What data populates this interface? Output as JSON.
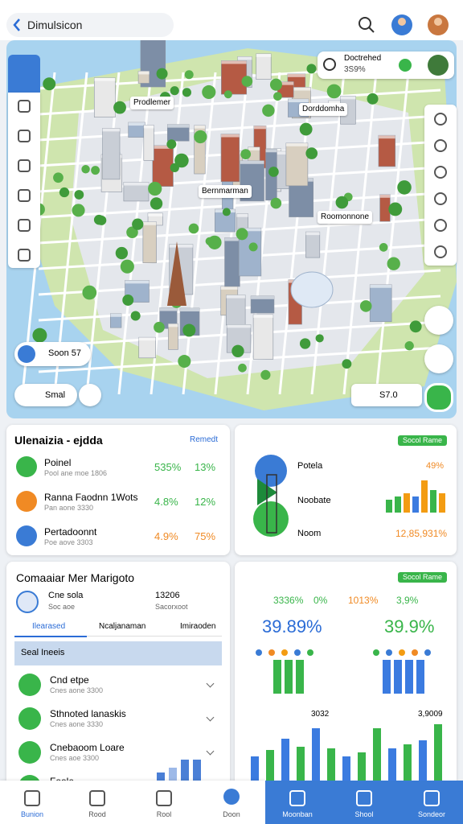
{
  "top_bar": {
    "search": "Dimulsicon"
  },
  "map": {
    "status": {
      "title": "Doctrehed",
      "value": "3S9%"
    },
    "labels": [
      "Prodlemer",
      "Dorddomha",
      "Bernmarman",
      "Roomonnone"
    ],
    "profile_chip": "Soon 57",
    "left_chip": "Smal",
    "right_chip": "S7.0"
  },
  "card_1": {
    "title": "Ulenaizia - ejdda",
    "link": "Remedt",
    "rows": [
      {
        "name": "Poinel",
        "sub": "Pool ane moe 1806",
        "value": "535%",
        "change": "13%"
      },
      {
        "name": "Ranna Faodnn 1Wots",
        "sub": "Pan aone 3330",
        "value": "4.8%",
        "change": "12%"
      },
      {
        "name": "Pertadoonnt",
        "sub": "Poe aove 3303",
        "value": "4.9%",
        "change": "75%"
      }
    ]
  },
  "card_2": {
    "badge": "Socol Rame",
    "labels": [
      "Potela",
      "Noobate",
      "Noom"
    ],
    "value_top": "49%",
    "value_bottom": "12,85,931%",
    "bars": {
      "values": [
        16,
        20,
        24,
        20,
        40,
        28,
        24
      ],
      "colors": [
        "#39b54a",
        "#39b54a",
        "#f39c12",
        "#3b7be0",
        "#f39c12",
        "#39b54a",
        "#f39c12"
      ]
    }
  },
  "card_3": {
    "title": "Comaaiar Mer Marigoto",
    "info": [
      "Cne sola",
      "Soc aoe"
    ],
    "info_values": [
      "13206",
      "Sacorxoot"
    ],
    "tabs": [
      "Ilearased",
      "Ncaljanaman",
      "Imiraoden"
    ],
    "selected": "Seal Ineeis",
    "items": [
      {
        "name": "Cnd etpe",
        "sub": "Cnes aone 3300"
      },
      {
        "name": "Sthnoted lanaskis",
        "sub": "Cnes aone 3330"
      },
      {
        "name": "Cnebaoom Loare",
        "sub": "Cnes aoe 3300"
      },
      {
        "name": "Foole",
        "sub": ""
      }
    ],
    "bars": {
      "values": [
        10,
        16,
        26,
        26
      ],
      "colors": [
        "#4a7fd6",
        "#9db9e8",
        "#4a7fd6",
        "#4a7fd6"
      ]
    }
  },
  "card_4": {
    "badge": "Socol Rame",
    "top_values": [
      "3336%",
      "0%",
      "1013%",
      "3,9%"
    ],
    "big_values": [
      "39.89%",
      "39.9%"
    ],
    "bars_left": {
      "values": [
        42,
        42,
        42
      ],
      "color": "#39b54a"
    },
    "bars_right": {
      "values": [
        42,
        42,
        42,
        42
      ],
      "color": "#3b7be0"
    },
    "chart_labels": [
      "3032",
      "3,9009"
    ],
    "chart": {
      "values": [
        30,
        38,
        52,
        42,
        65,
        40,
        30,
        35,
        65,
        40,
        45,
        50,
        70
      ],
      "colors": [
        "#3b7be0",
        "#39b54a",
        "#3b7be0",
        "#39b54a",
        "#3b7be0",
        "#39b54a",
        "#3b7be0",
        "#39b54a",
        "#39b54a",
        "#3b7be0",
        "#39b54a",
        "#3b7be0",
        "#39b54a"
      ]
    }
  },
  "bottom_nav": [
    "Bunion",
    "Rood",
    "Rool",
    "Doon",
    "Moonban",
    "Shool",
    "Sondeor"
  ]
}
